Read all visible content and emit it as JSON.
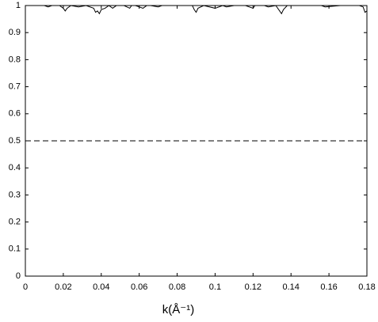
{
  "chart_data": {
    "type": "line",
    "x_label": "k(Å⁻¹)",
    "xlim": [
      0,
      0.18
    ],
    "xticks": [
      0,
      0.02,
      0.04,
      0.06,
      0.08,
      0.1,
      0.12,
      0.14,
      0.16,
      0.18
    ],
    "ylim": [
      0,
      1
    ],
    "yticks": [
      0,
      0.1,
      0.2,
      0.3,
      0.4,
      0.5,
      0.6,
      0.7,
      0.8,
      0.9,
      1
    ],
    "grid": false,
    "series": [
      {
        "color": "#000000",
        "dash": false,
        "x": [
          0,
          0.004,
          0.008,
          0.01,
          0.012,
          0.014,
          0.018,
          0.02,
          0.021,
          0.022,
          0.024,
          0.028,
          0.032,
          0.036,
          0.037,
          0.038,
          0.039,
          0.04,
          0.042,
          0.044,
          0.046,
          0.047,
          0.048,
          0.052,
          0.055,
          0.056,
          0.058,
          0.062,
          0.064,
          0.066,
          0.07,
          0.072,
          0.076,
          0.08,
          0.084,
          0.088,
          0.089,
          0.09,
          0.091,
          0.094,
          0.1,
          0.104,
          0.106,
          0.11,
          0.116,
          0.12,
          0.121,
          0.126,
          0.128,
          0.132,
          0.134,
          0.135,
          0.136,
          0.138,
          0.144,
          0.15,
          0.156,
          0.158,
          0.166,
          0.172,
          0.176,
          0.178,
          0.179,
          0.18
        ],
        "values": [
          1,
          1,
          1,
          1,
          0.995,
          1,
          1,
          0.99,
          0.98,
          0.99,
          1,
          0.995,
          1,
          0.99,
          0.975,
          0.98,
          0.97,
          0.985,
          0.99,
          1,
          0.99,
          0.995,
          1,
          1,
          0.99,
          1,
          1,
          0.99,
          1,
          1,
          0.995,
          1,
          1,
          1,
          1,
          1,
          0.985,
          0.975,
          0.99,
          1,
          0.99,
          1,
          0.995,
          1,
          1,
          0.99,
          1,
          1,
          0.995,
          1,
          0.98,
          0.97,
          0.985,
          1,
          1,
          1,
          1,
          0.995,
          1,
          1,
          1,
          0.995,
          0.975,
          0.98
        ]
      },
      {
        "color": "#000000",
        "dash": true,
        "x": [
          0,
          0.18
        ],
        "values": [
          0.5,
          0.5
        ]
      }
    ]
  }
}
